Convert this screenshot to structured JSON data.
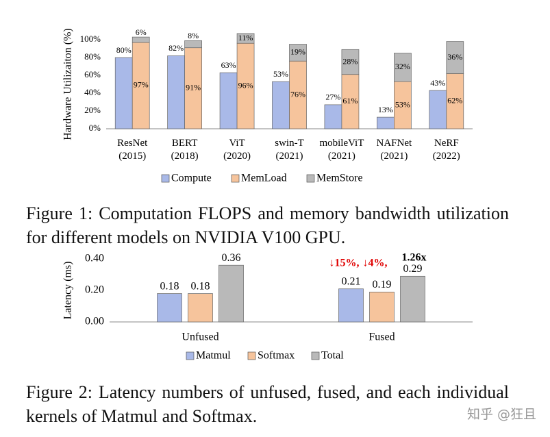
{
  "chart_data": [
    {
      "type": "bar",
      "y_label": "Hardware Utilizaiton (%)",
      "categories": [
        "ResNet (2015)",
        "BERT (2018)",
        "ViT (2020)",
        "swin-T (2021)",
        "mobileViT (2021)",
        "NAFNet (2021)",
        "NeRF (2022)"
      ],
      "series": [
        {
          "name": "Compute",
          "color": "#a9b9e8",
          "values": [
            80,
            82,
            63,
            53,
            27,
            13,
            43
          ],
          "value_labels": [
            "80%",
            "82%",
            "63%",
            "53%",
            "27%",
            "13%",
            "43%"
          ]
        },
        {
          "name": "MemLoad",
          "color": "#f6c49c",
          "values": [
            97,
            91,
            96,
            76,
            61,
            53,
            62
          ],
          "value_labels": [
            "97%",
            "91%",
            "96%",
            "76%",
            "61%",
            "53%",
            "62%"
          ]
        },
        {
          "name": "MemStore",
          "color": "#b9b9b9",
          "stack_on": "MemLoad",
          "values": [
            6,
            8,
            11,
            19,
            28,
            32,
            36
          ],
          "value_labels": [
            "6%",
            "8%",
            "11%",
            "19%",
            "28%",
            "32%",
            "36%"
          ]
        }
      ],
      "ylim": [
        0,
        100
      ],
      "yticks": [
        {
          "value": 0,
          "label": "0%"
        },
        {
          "value": 20,
          "label": "20%"
        },
        {
          "value": 40,
          "label": "40%"
        },
        {
          "value": 60,
          "label": "60%"
        },
        {
          "value": 80,
          "label": "80%"
        },
        {
          "value": 100,
          "label": "100%"
        }
      ]
    },
    {
      "type": "bar",
      "y_label": "Latency (ms)",
      "categories": [
        "Unfused",
        "Fused"
      ],
      "series": [
        {
          "name": "Matmul",
          "color": "#a9b9e8",
          "values": [
            0.18,
            0.21
          ]
        },
        {
          "name": "Softmax",
          "color": "#f6c49c",
          "values": [
            0.18,
            0.19
          ]
        },
        {
          "name": "Total",
          "color": "#b9b9b9",
          "values": [
            0.36,
            0.29
          ]
        }
      ],
      "ylim": [
        0,
        0.4
      ],
      "yticks": [
        {
          "value": 0,
          "label": "0.00"
        },
        {
          "value": 0.2,
          "label": "0.20"
        },
        {
          "value": 0.4,
          "label": "0.40"
        }
      ],
      "annotations": [
        {
          "text": "↓15%,",
          "color": "#e00000"
        },
        {
          "text": "↓4%,",
          "color": "#e00000"
        },
        {
          "text": "1.26x",
          "color": "#000000"
        }
      ]
    }
  ],
  "captions": [
    "Figure 1: Computation FLOPS and memory bandwidth utilization for different models on NVIDIA V100 GPU.",
    "Figure 2: Latency numbers of unfused, fused, and each individual kernels of Matmul and Softmax."
  ],
  "watermark": "知乎 @狂且"
}
